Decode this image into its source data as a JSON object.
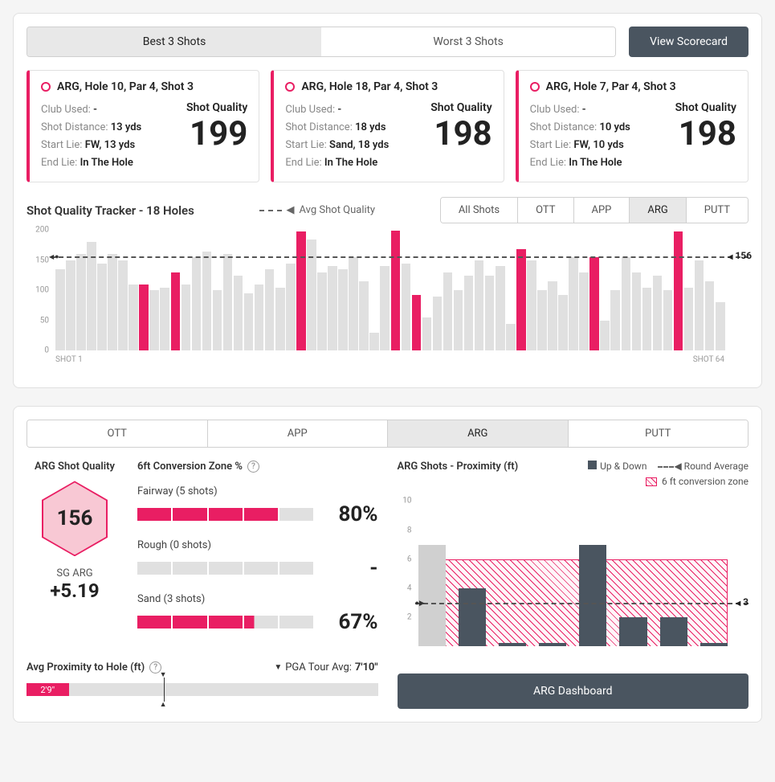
{
  "colors": {
    "accent": "#e91e63",
    "accent_light": "#f8c8d4",
    "dark": "#4a5560",
    "grey": "#e0e0e0",
    "text": "#222"
  },
  "top_tabs": {
    "best": "Best 3 Shots",
    "worst": "Worst 3 Shots",
    "active": "best"
  },
  "view_scorecard": "View Scorecard",
  "shot_cards": [
    {
      "title": "ARG, Hole 10, Par 4, Shot 3",
      "club": "-",
      "distance": "13 yds",
      "start_lie": "FW, 13 yds",
      "end_lie": "In The Hole",
      "quality": 199
    },
    {
      "title": "ARG, Hole 18, Par 4, Shot 3",
      "club": "-",
      "distance": "18 yds",
      "start_lie": "Sand, 18 yds",
      "end_lie": "In The Hole",
      "quality": 198
    },
    {
      "title": "ARG, Hole 7, Par 4, Shot 3",
      "club": "-",
      "distance": "10 yds",
      "start_lie": "FW, 10 yds",
      "end_lie": "In The Hole",
      "quality": 198
    }
  ],
  "card_labels": {
    "club": "Club Used:",
    "dist": "Shot Distance:",
    "start": "Start Lie:",
    "end": "End Lie:",
    "sq": "Shot Quality"
  },
  "tracker": {
    "title": "Shot Quality Tracker - 18 Holes",
    "avg_label": "Avg Shot Quality",
    "tabs": [
      "All Shots",
      "OTT",
      "APP",
      "ARG",
      "PUTT"
    ],
    "active_tab": "ARG",
    "ymax": 200,
    "yticks": [
      0,
      50,
      100,
      150,
      200
    ],
    "avg": 156,
    "shot_start": "SHOT 1",
    "shot_end": "SHOT 64",
    "bars": [
      {
        "v": 135,
        "hl": false
      },
      {
        "v": 150,
        "hl": false
      },
      {
        "v": 160,
        "hl": false
      },
      {
        "v": 180,
        "hl": false
      },
      {
        "v": 145,
        "hl": false
      },
      {
        "v": 160,
        "hl": false
      },
      {
        "v": 150,
        "hl": false
      },
      {
        "v": 110,
        "hl": false
      },
      {
        "v": 110,
        "hl": true
      },
      {
        "v": 100,
        "hl": false
      },
      {
        "v": 105,
        "hl": false
      },
      {
        "v": 130,
        "hl": true
      },
      {
        "v": 110,
        "hl": false
      },
      {
        "v": 155,
        "hl": false
      },
      {
        "v": 165,
        "hl": false
      },
      {
        "v": 100,
        "hl": false
      },
      {
        "v": 160,
        "hl": false
      },
      {
        "v": 125,
        "hl": false
      },
      {
        "v": 95,
        "hl": false
      },
      {
        "v": 110,
        "hl": false
      },
      {
        "v": 135,
        "hl": false
      },
      {
        "v": 105,
        "hl": false
      },
      {
        "v": 145,
        "hl": false
      },
      {
        "v": 198,
        "hl": true
      },
      {
        "v": 185,
        "hl": false
      },
      {
        "v": 130,
        "hl": false
      },
      {
        "v": 140,
        "hl": false
      },
      {
        "v": 135,
        "hl": false
      },
      {
        "v": 155,
        "hl": false
      },
      {
        "v": 115,
        "hl": false
      },
      {
        "v": 30,
        "hl": false
      },
      {
        "v": 140,
        "hl": false
      },
      {
        "v": 199,
        "hl": true
      },
      {
        "v": 145,
        "hl": false
      },
      {
        "v": 92,
        "hl": true
      },
      {
        "v": 55,
        "hl": false
      },
      {
        "v": 90,
        "hl": false
      },
      {
        "v": 130,
        "hl": false
      },
      {
        "v": 100,
        "hl": false
      },
      {
        "v": 125,
        "hl": false
      },
      {
        "v": 150,
        "hl": false
      },
      {
        "v": 125,
        "hl": false
      },
      {
        "v": 140,
        "hl": false
      },
      {
        "v": 45,
        "hl": false
      },
      {
        "v": 168,
        "hl": true
      },
      {
        "v": 150,
        "hl": false
      },
      {
        "v": 100,
        "hl": false
      },
      {
        "v": 115,
        "hl": false
      },
      {
        "v": 92,
        "hl": false
      },
      {
        "v": 155,
        "hl": false
      },
      {
        "v": 130,
        "hl": false
      },
      {
        "v": 155,
        "hl": true
      },
      {
        "v": 50,
        "hl": false
      },
      {
        "v": 100,
        "hl": false
      },
      {
        "v": 155,
        "hl": false
      },
      {
        "v": 130,
        "hl": false
      },
      {
        "v": 105,
        "hl": false
      },
      {
        "v": 125,
        "hl": false
      },
      {
        "v": 100,
        "hl": false
      },
      {
        "v": 198,
        "hl": true
      },
      {
        "v": 105,
        "hl": false
      },
      {
        "v": 150,
        "hl": false
      },
      {
        "v": 115,
        "hl": false
      },
      {
        "v": 80,
        "hl": false
      }
    ]
  },
  "lower": {
    "cat_tabs": [
      "OTT",
      "APP",
      "ARG",
      "PUTT"
    ],
    "active_cat": "ARG",
    "sq_title": "ARG Shot Quality",
    "hex_value": 156,
    "sg_label": "SG ARG",
    "sg_value": "+5.19",
    "conv_title": "6ft Conversion Zone %",
    "conv_rows": [
      {
        "label": "Fairway (5 shots)",
        "segments": 5,
        "filled": 4,
        "pct": "80%"
      },
      {
        "label": "Rough (0 shots)",
        "segments": 5,
        "filled": 0,
        "pct": "-"
      },
      {
        "label": "Sand (3 shots)",
        "segments": 5,
        "filled": 3.3,
        "pct": "67%"
      }
    ],
    "prox_row": {
      "label": "Avg Proximity to Hole (ft)",
      "pga_label": "PGA Tour Avg:",
      "pga_val": "7'10\"",
      "fill_text": "2'9\"",
      "fill_pct": 12,
      "marker_pct": 39
    },
    "right_title": "ARG Shots - Proximity (ft)",
    "legend": {
      "updown": "Up & Down",
      "round_avg": "Round Average",
      "zone": "6 ft conversion zone"
    },
    "prox_chart": {
      "ymax": 10.5,
      "yticks": [
        2,
        4,
        6,
        8,
        10
      ],
      "zone_top": 6,
      "avg": 3,
      "bars": [
        {
          "v": 7,
          "up": false
        },
        {
          "v": 4,
          "up": true
        },
        {
          "v": 0.22,
          "up": true
        },
        {
          "v": 0.22,
          "up": true
        },
        {
          "v": 7,
          "up": true
        },
        {
          "v": 2,
          "up": true
        },
        {
          "v": 2,
          "up": true
        },
        {
          "v": 0.22,
          "up": true
        }
      ]
    },
    "dash_btn": "ARG Dashboard"
  }
}
